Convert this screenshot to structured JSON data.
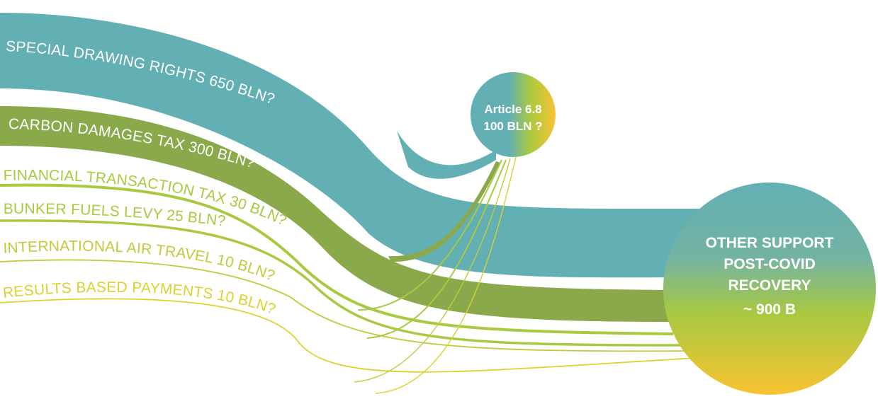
{
  "colors": {
    "teal": "#63b0b4",
    "olive": "#8aa94b",
    "green_light": "#a9c940",
    "yellow_green": "#c4c93c",
    "yellow": "#ddd12e",
    "gold": "#f9c332",
    "white": "#ffffff"
  },
  "flows": [
    {
      "label": "SPECIAL DRAWING RIGHTS 650 BLN?",
      "color": "teal"
    },
    {
      "label": "CARBON DAMAGES TAX 300 BLN?",
      "color": "olive"
    },
    {
      "label": "FINANCIAL TRANSACTION TAX 30 BLN?",
      "color": "green_light"
    },
    {
      "label": "BUNKER FUELS LEVY 25 BLN?",
      "color": "green_light"
    },
    {
      "label": "INTERNATIONAL AIR TRAVEL 10 BLN?",
      "color": "yellow_green"
    },
    {
      "label": "RESULTS BASED PAYMENTS 10 BLN?",
      "color": "yellow"
    }
  ],
  "nodes": {
    "article": {
      "line1": "Article 6.8",
      "line2": "100 BLN ?"
    },
    "other_support": {
      "line1": "OTHER SUPPORT",
      "line2": "POST-COVID",
      "line3": "RECOVERY",
      "line4": "~ 900 B"
    }
  }
}
